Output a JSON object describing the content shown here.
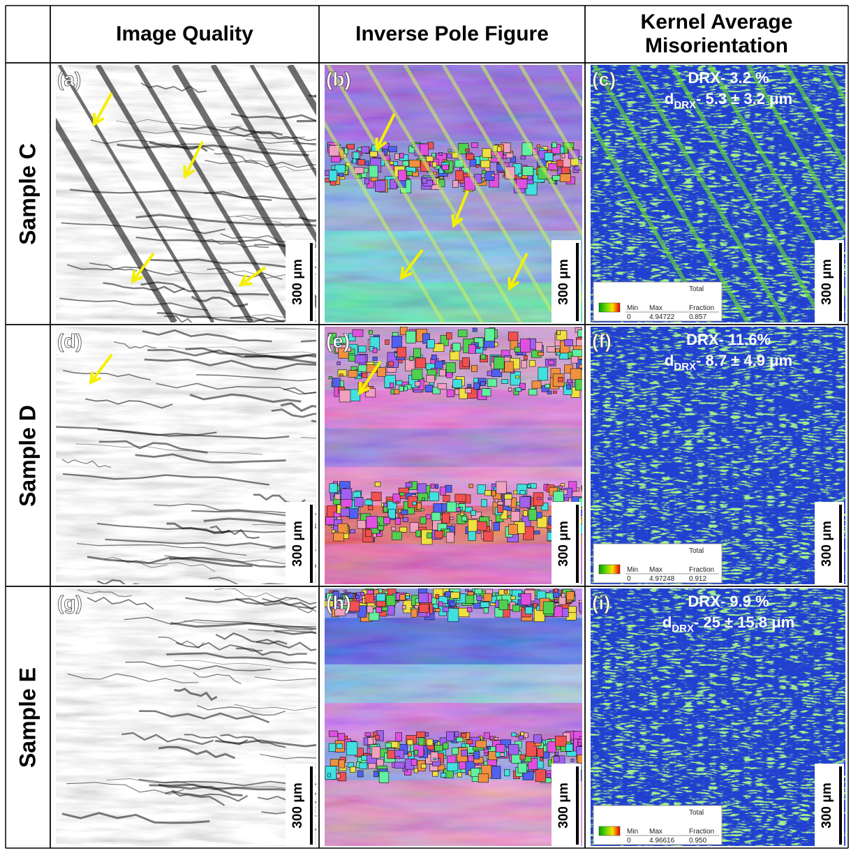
{
  "header": {
    "columns": [
      "Image Quality",
      "Inverse Pole Figure",
      "Kernel Average Misorientation"
    ]
  },
  "rows": [
    {
      "label": "Sample C",
      "panels": [
        "(a)",
        "(b)",
        "(c)"
      ],
      "scale_bars": [
        "300 μm",
        "300 μm",
        "300 μm"
      ],
      "drx": {
        "line1": "DRX- 3.2 %",
        "d": "d",
        "sub": "DRX",
        "rest": "- 5.3 ± 3.2 μm"
      },
      "legend": {
        "min_label": "Min",
        "max_label": "Max",
        "fraction_label": [
          "Total",
          "Fraction"
        ],
        "min": "0",
        "max": "4.94722",
        "fraction": "0.857"
      }
    },
    {
      "label": "Sample D",
      "panels": [
        "(d)",
        "(e)",
        "(f)"
      ],
      "scale_bars": [
        "300 μm",
        "300 μm",
        "300 μm"
      ],
      "drx": {
        "line1": "DRX- 11.6%",
        "d": "d",
        "sub": "DRX",
        "rest": "- 8.7 ± 4.9 μm"
      },
      "legend": {
        "min_label": "Min",
        "max_label": "Max",
        "fraction_label": [
          "Total",
          "Fraction"
        ],
        "min": "0",
        "max": "4.97248",
        "fraction": "0.912"
      }
    },
    {
      "label": "Sample E",
      "panels": [
        "(g)",
        "(h)",
        "(i)"
      ],
      "scale_bars": [
        "300 μm",
        "300 μm",
        "300 μm"
      ],
      "drx": {
        "line1": "DRX- 9.9 %",
        "d": "d",
        "sub": "DRX",
        "rest": "- 25 ± 15.8 μm"
      },
      "legend": {
        "min_label": "Min",
        "max_label": "Max",
        "fraction_label": [
          "Total",
          "Fraction"
        ],
        "min": "0",
        "max": "4.96616",
        "fraction": "0.950"
      }
    }
  ]
}
